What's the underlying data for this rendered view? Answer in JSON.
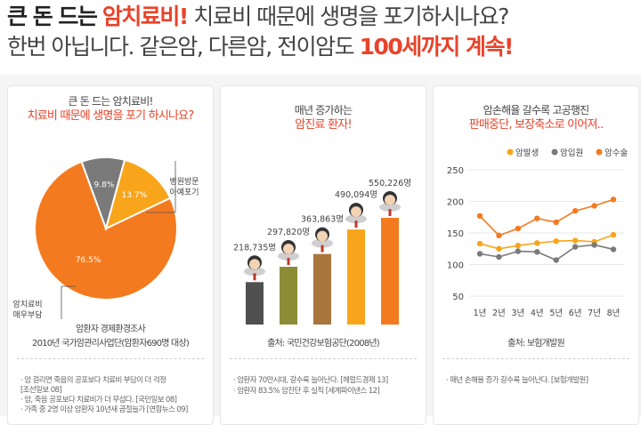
{
  "headline": {
    "line1_a": "큰 돈 드는",
    "line1_b": "암치료비!",
    "line1_c": "치료비 때문에 생명을 포기하시나요?",
    "line2_a": "한번 아닙니다. 같은암, 다른암, 전이암도",
    "line2_b": "100세까지 계속!"
  },
  "panel1": {
    "title1": "큰 돈 드는 암치료비!",
    "title2": "치료비 때문에 생명을 포기 하시나요?",
    "slices": [
      {
        "label": "76.5%",
        "value": 76.5,
        "color": "#f47a1f"
      },
      {
        "label": "9.8%",
        "value": 9.8,
        "color": "#7a7a7a"
      },
      {
        "label": "13.7%",
        "value": 13.7,
        "color": "#f8a51b"
      }
    ],
    "callout_right1": "병원방문",
    "callout_right2": "아예포기",
    "callout_left1": "암치료비",
    "callout_left2": "매우부담",
    "source1": "암환자 경제환경조사",
    "source2": "2010년 국가암관리사업단(암환자690명 대상)",
    "notes": [
      "· 암 걸리면 죽음의 공포보다 치료비 부담이 더 걱정",
      "  [조선일보 08]",
      "· 암, 죽음 공포보다 치료비가 더 무섭다. [국민일보 08]",
      "· 가족 중 2명 이상 암환자 10년새 곱절늘가 [연합뉴스 09]"
    ]
  },
  "panel2": {
    "title1": "매년 증가하는",
    "title2": "암진료 환자!",
    "bars": [
      {
        "label": "218,735명",
        "value": 218735,
        "color": "#505050"
      },
      {
        "label": "297,820명",
        "value": 297820,
        "color": "#8c8c36"
      },
      {
        "label": "363,863명",
        "value": 363863,
        "color": "#a8763e"
      },
      {
        "label": "490,094명",
        "value": 490094,
        "color": "#f8a51b"
      },
      {
        "label": "550,226명",
        "value": 550226,
        "color": "#f47a1f"
      }
    ],
    "source": "출처: 국민건강보험공단(2008년)",
    "notes": [
      "· 암환자 70만시대, 갈수록 늘어난다. [헤럴드경제 13]",
      "· 암환자 83.5% 암진단 후 실직 [세계파이낸스 12]"
    ]
  },
  "panel3": {
    "title1": "암손해율 갈수록 고공행진",
    "title2": "판매중단, 보장축소로 이어져..",
    "source": "출처: 보험개발원",
    "note": "· 매년 손해율 증가 갈수록 늘어난다. [보험개발원]"
  },
  "chart_data": {
    "type": "line",
    "x": [
      "1년",
      "2년",
      "3년",
      "4년",
      "5년",
      "6년",
      "7년",
      "8년"
    ],
    "ylim": [
      50,
      250
    ],
    "yticks": [
      50,
      100,
      150,
      200,
      250
    ],
    "legend_position": "top",
    "series": [
      {
        "name": "암발생",
        "color": "#f8a51b",
        "values": [
          133,
          125,
          130,
          134,
          137,
          138,
          136,
          147
        ]
      },
      {
        "name": "암입원",
        "color": "#7a7a7a",
        "values": [
          117,
          112,
          121,
          120,
          107,
          128,
          131,
          124
        ]
      },
      {
        "name": "암수술",
        "color": "#f47a1f",
        "values": [
          177,
          146,
          157,
          173,
          167,
          185,
          193,
          203
        ]
      }
    ]
  }
}
